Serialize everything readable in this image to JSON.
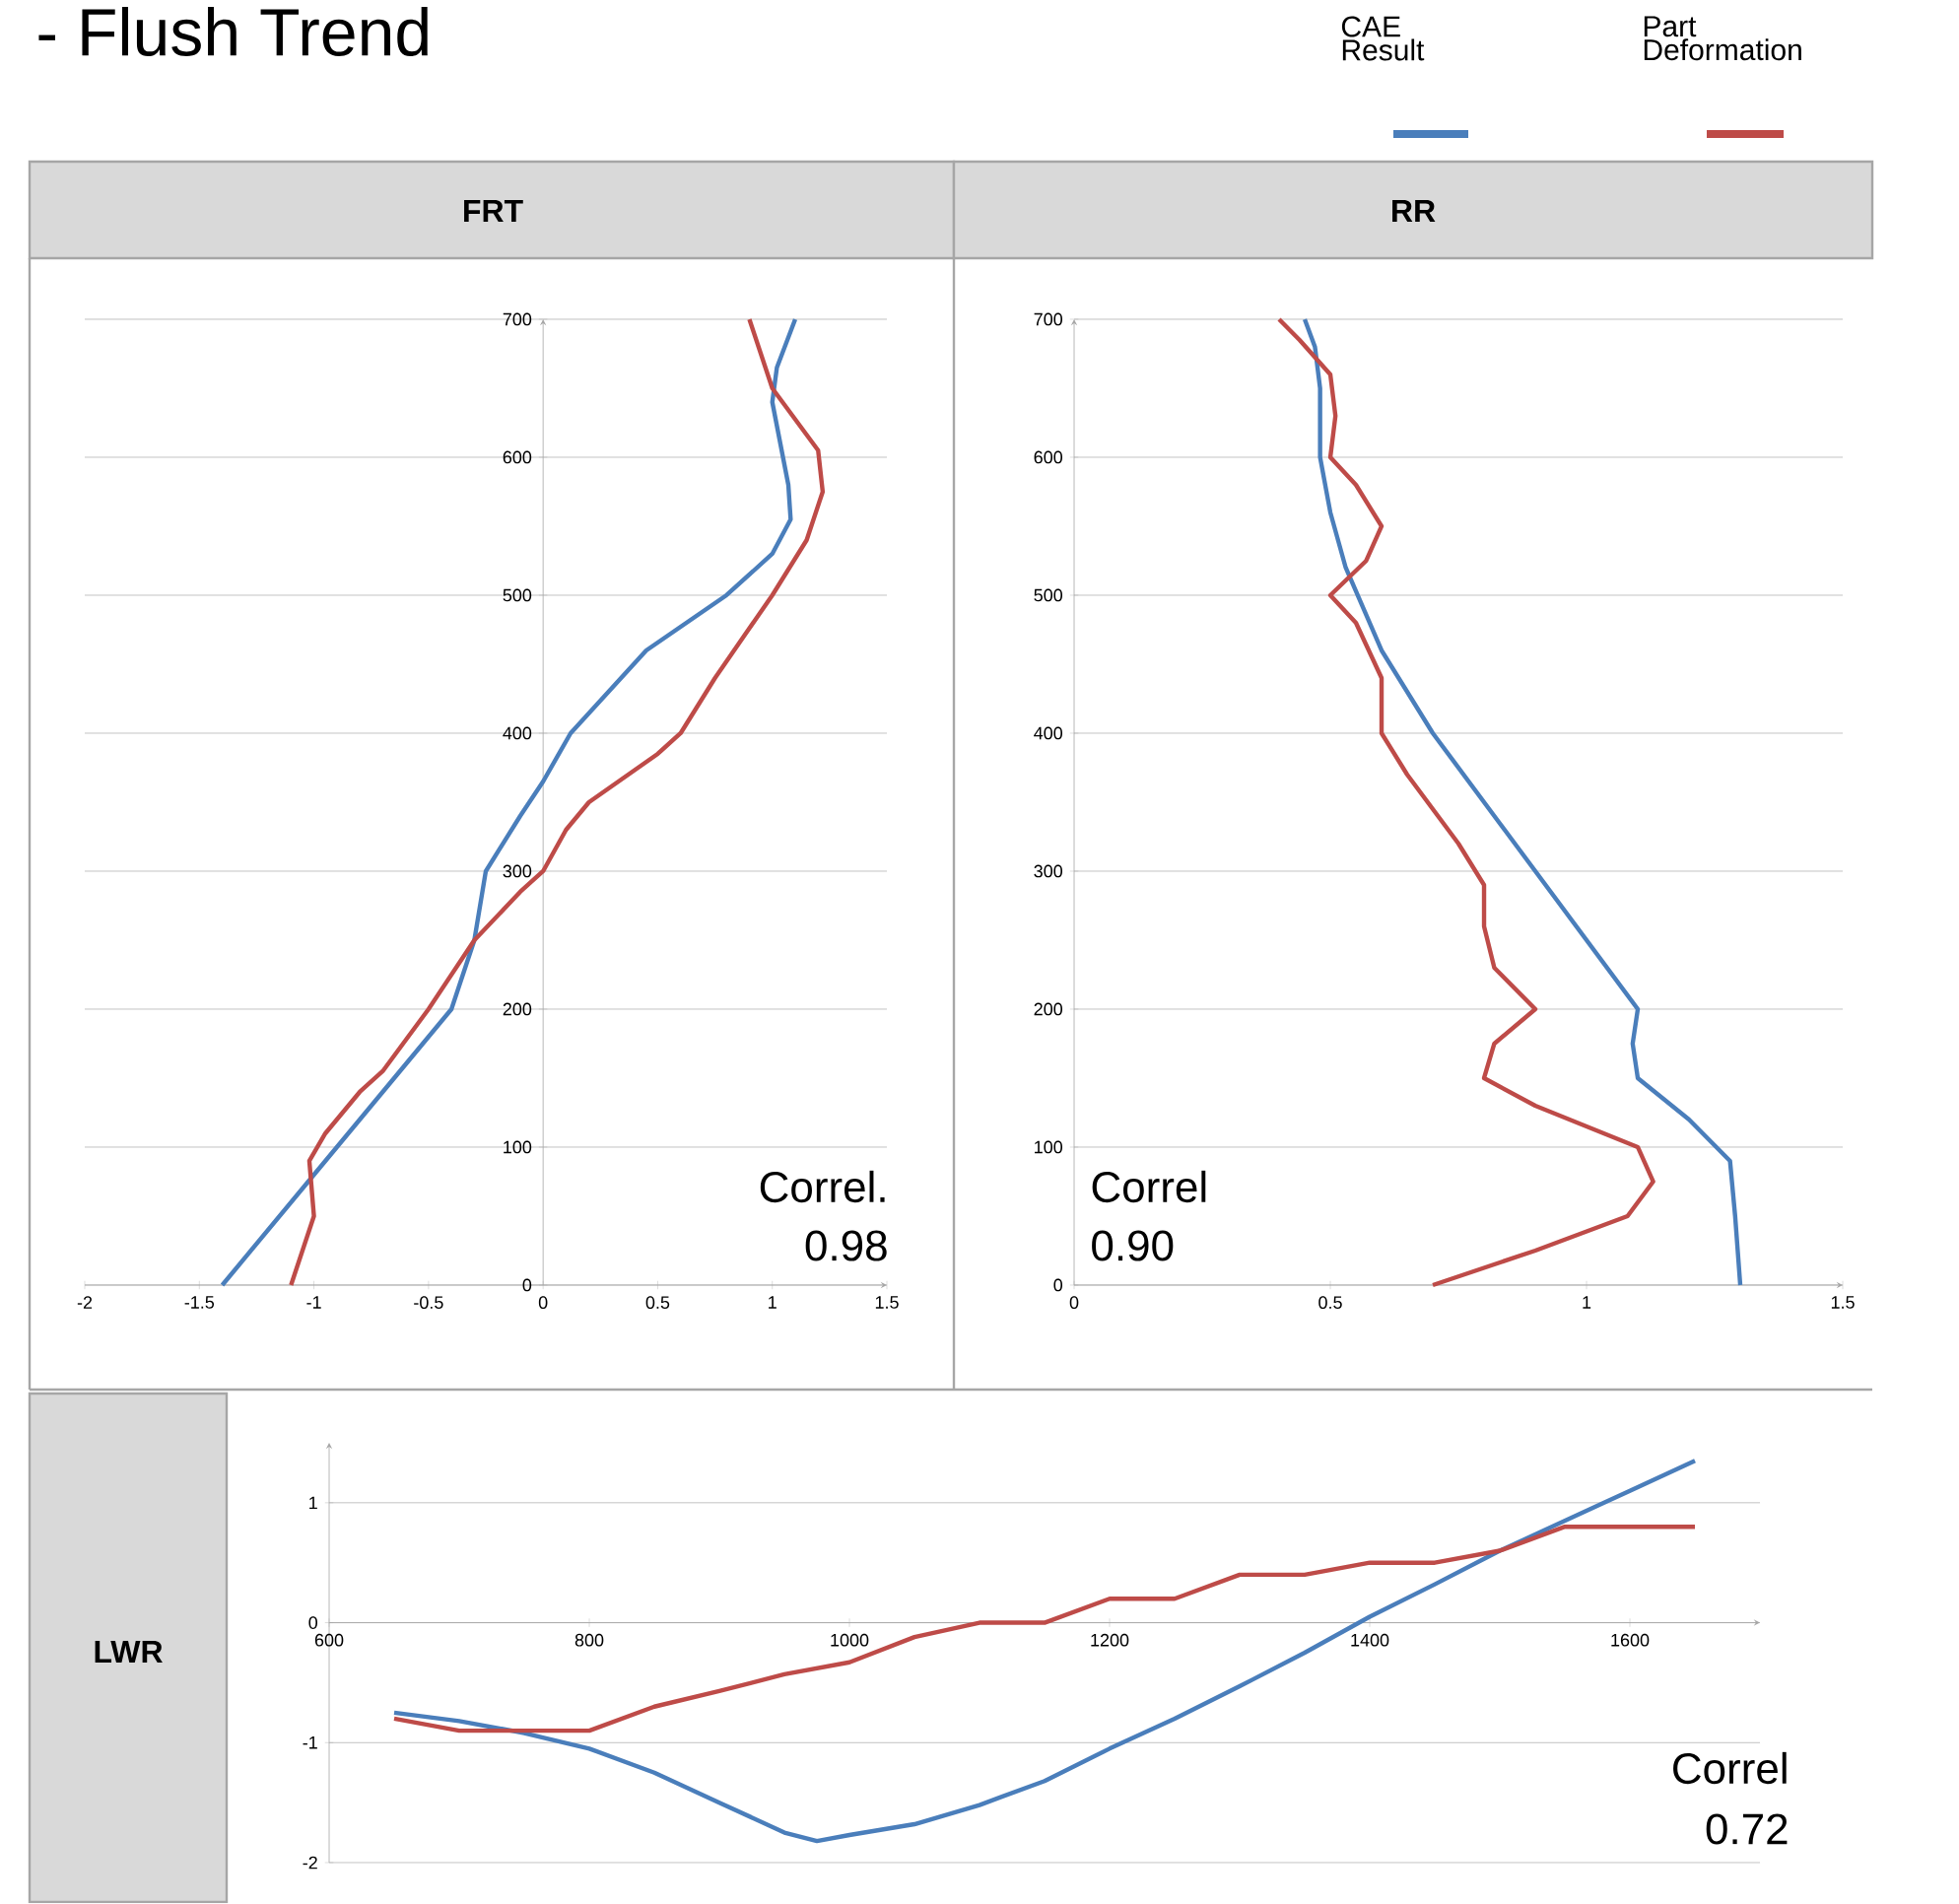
{
  "chart_data": [
    {
      "type": "line",
      "title": "FRT",
      "annotations": [
        "- Flush Trend",
        "Correl.",
        "0.98"
      ],
      "legend": "top right",
      "grid": "y",
      "xlim": [
        -2,
        1.5
      ],
      "ylim": [
        0,
        700
      ],
      "xticks": [
        -2,
        -1.5,
        -1,
        -0.5,
        0,
        0.5,
        1,
        1.5
      ],
      "yticks": [
        0,
        100,
        200,
        300,
        400,
        500,
        600,
        700
      ],
      "series": [
        {
          "name": "CAE Result",
          "color": "#4a7ebb",
          "x": [
            -1.4,
            -1.0,
            -0.65,
            -0.4,
            -0.3,
            -0.25,
            -0.1,
            0,
            0.12,
            0.45,
            0.8,
            1.0,
            1.08,
            1.07,
            1.0,
            1.02,
            1.1
          ],
          "values": [
            0,
            80,
            150,
            200,
            250,
            300,
            340,
            365,
            400,
            460,
            500,
            530,
            555,
            580,
            640,
            665,
            700
          ]
        },
        {
          "name": "Part Deformation",
          "color": "#be4b48",
          "x": [
            -1.1,
            -1.0,
            -1.02,
            -0.95,
            -0.8,
            -0.7,
            -0.5,
            -0.3,
            -0.1,
            0,
            0.1,
            0.2,
            0.5,
            0.6,
            0.75,
            1.0,
            1.15,
            1.22,
            1.2,
            1.0,
            0.9
          ],
          "values": [
            0,
            50,
            90,
            110,
            140,
            155,
            200,
            250,
            285,
            300,
            330,
            350,
            385,
            400,
            440,
            500,
            540,
            575,
            605,
            650,
            700
          ]
        }
      ]
    },
    {
      "type": "line",
      "title": "RR",
      "annotations": [
        "Correl",
        "0.90"
      ],
      "grid": "y",
      "xlim": [
        0,
        1.5
      ],
      "ylim": [
        0,
        700
      ],
      "xticks": [
        0,
        0.5,
        1,
        1.5
      ],
      "yticks": [
        0,
        100,
        200,
        300,
        400,
        500,
        600,
        700
      ],
      "series": [
        {
          "color": "#4a7ebb",
          "x": [
            1.3,
            1.29,
            1.28,
            1.2,
            1.1,
            1.09,
            1.1,
            1.0,
            0.9,
            0.7,
            0.6,
            0.53,
            0.5,
            0.48,
            0.48,
            0.47,
            0.45
          ],
          "values": [
            0,
            50,
            90,
            120,
            150,
            175,
            200,
            250,
            300,
            400,
            460,
            520,
            560,
            600,
            650,
            680,
            700
          ]
        },
        {
          "color": "#be4b48",
          "x": [
            0.7,
            0.9,
            1.08,
            1.13,
            1.1,
            0.9,
            0.8,
            0.82,
            0.9,
            0.82,
            0.8,
            0.8,
            0.75,
            0.65,
            0.6,
            0.6,
            0.55,
            0.5,
            0.57,
            0.6,
            0.55,
            0.5,
            0.51,
            0.5,
            0.44,
            0.4
          ],
          "values": [
            0,
            25,
            50,
            75,
            100,
            130,
            150,
            175,
            200,
            230,
            260,
            290,
            320,
            370,
            400,
            440,
            480,
            500,
            525,
            550,
            580,
            600,
            630,
            660,
            685,
            700
          ]
        }
      ]
    },
    {
      "type": "line",
      "title": "LWR",
      "annotations": [
        "Correl",
        "0.72"
      ],
      "grid": "y",
      "xlim": [
        600,
        1700
      ],
      "ylim": [
        -2,
        1.5
      ],
      "xticks": [
        600,
        800,
        1000,
        1200,
        1400,
        1600
      ],
      "yticks": [
        -2,
        -1,
        0,
        1
      ],
      "series": [
        {
          "color": "#4a7ebb",
          "x": [
            650,
            700,
            750,
            800,
            850,
            900,
            950,
            975,
            1000,
            1050,
            1100,
            1150,
            1200,
            1250,
            1300,
            1350,
            1400,
            1450,
            1500,
            1550,
            1600,
            1650
          ],
          "values": [
            -0.75,
            -0.82,
            -0.92,
            -1.05,
            -1.25,
            -1.5,
            -1.75,
            -1.82,
            -1.77,
            -1.68,
            -1.52,
            -1.32,
            -1.05,
            -0.8,
            -0.53,
            -0.25,
            0.05,
            0.32,
            0.6,
            0.85,
            1.1,
            1.35
          ]
        },
        {
          "color": "#be4b48",
          "x": [
            650,
            700,
            750,
            800,
            850,
            900,
            950,
            1000,
            1050,
            1100,
            1150,
            1200,
            1250,
            1300,
            1350,
            1400,
            1450,
            1500,
            1550,
            1600,
            1650
          ],
          "values": [
            -0.8,
            -0.9,
            -0.9,
            -0.9,
            -0.7,
            -0.57,
            -0.43,
            -0.33,
            -0.12,
            0,
            0,
            0.2,
            0.2,
            0.4,
            0.4,
            0.5,
            0.5,
            0.6,
            0.8,
            0.8,
            0.8
          ]
        }
      ]
    }
  ]
}
